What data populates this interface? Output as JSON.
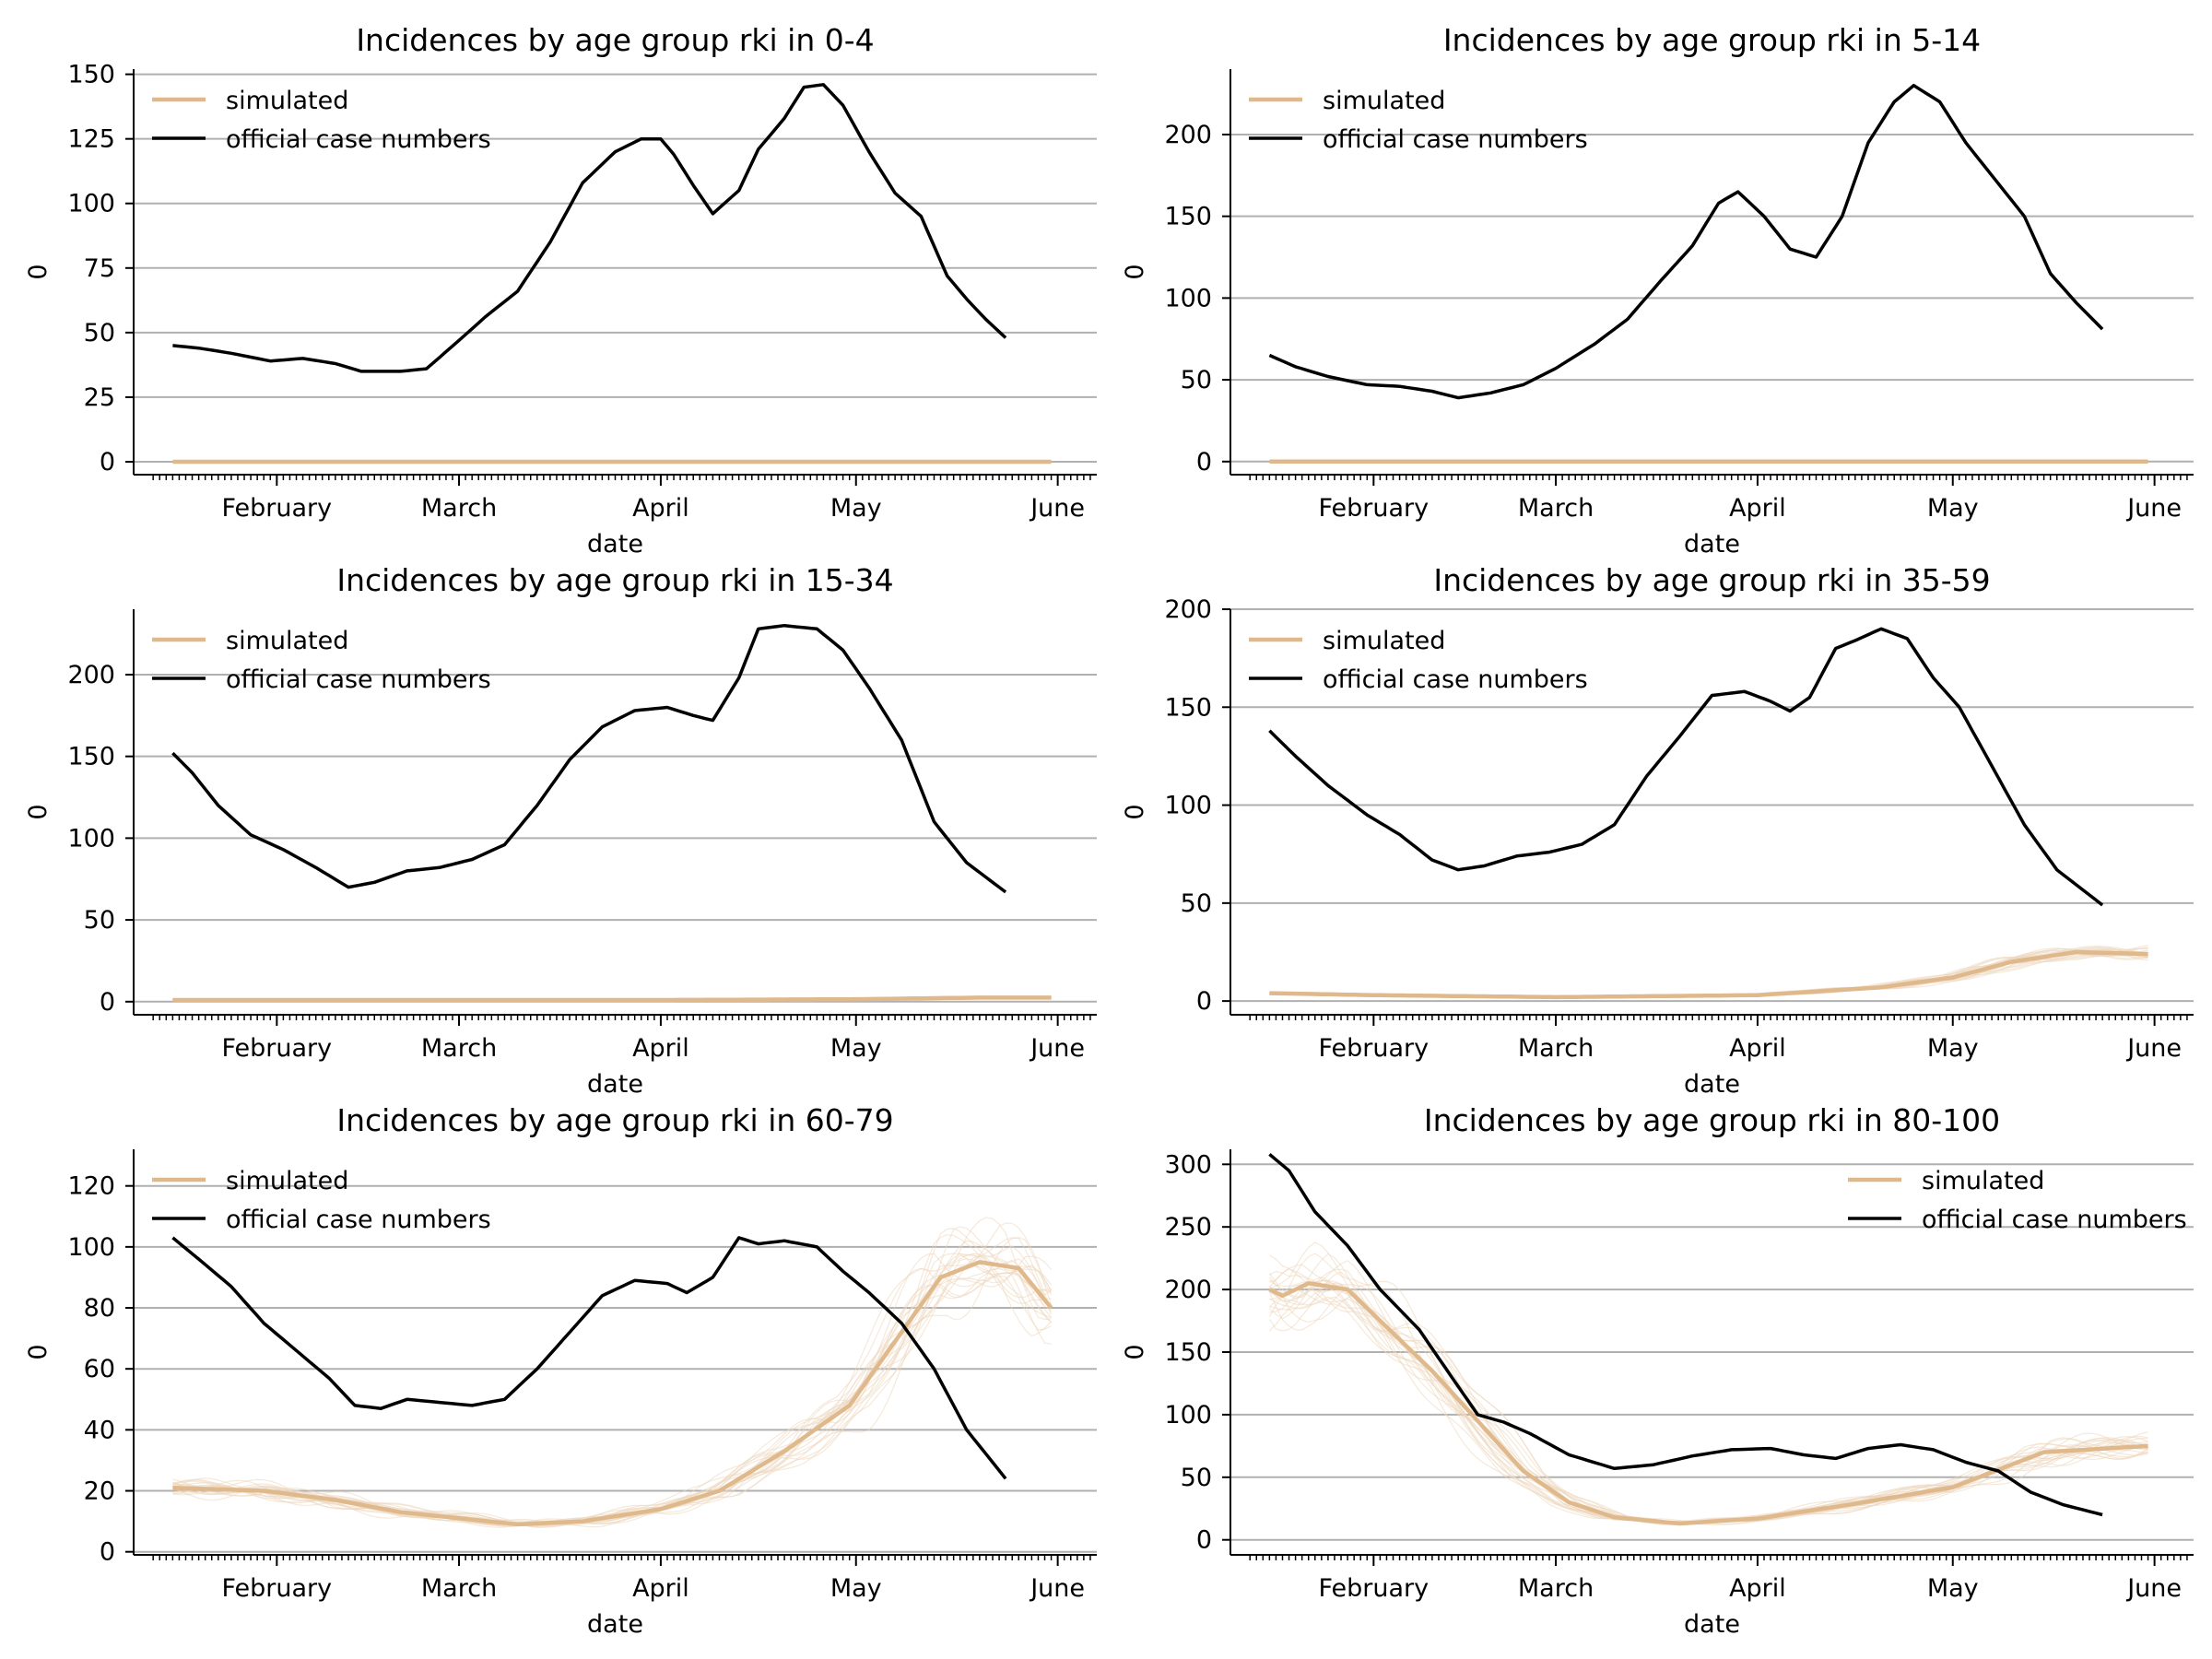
{
  "colors": {
    "simulated": "#dfb98c",
    "simulated_runs": "#ecd7bd",
    "official": "#000000",
    "grid": "#b0b0b0",
    "axis": "#000000"
  },
  "chart_data": [
    {
      "type": "line",
      "title": "Incidences by age group rki in 0-4",
      "xlabel": "date",
      "ylabel": "0",
      "xlim": [
        "2021-01-10",
        "2021-06-07"
      ],
      "ylim": [
        -5,
        152
      ],
      "yticks": [
        0,
        25,
        50,
        75,
        100,
        125,
        150
      ],
      "xticks": [
        {
          "date": "2021-02-01",
          "label": "February"
        },
        {
          "date": "2021-03-01",
          "label": "March"
        },
        {
          "date": "2021-04-01",
          "label": "April"
        },
        {
          "date": "2021-05-01",
          "label": "May"
        },
        {
          "date": "2021-06-01",
          "label": "June"
        }
      ],
      "grid": "horizontal",
      "legend_position": "upper-left",
      "series": [
        {
          "name": "official case numbers",
          "x": [
            "2021-01-16",
            "2021-01-20",
            "2021-01-25",
            "2021-01-31",
            "2021-02-05",
            "2021-02-10",
            "2021-02-14",
            "2021-02-20",
            "2021-02-24",
            "2021-03-01",
            "2021-03-05",
            "2021-03-10",
            "2021-03-15",
            "2021-03-20",
            "2021-03-25",
            "2021-03-29",
            "2021-04-01",
            "2021-04-03",
            "2021-04-06",
            "2021-04-09",
            "2021-04-13",
            "2021-04-16",
            "2021-04-20",
            "2021-04-23",
            "2021-04-26",
            "2021-04-29",
            "2021-05-03",
            "2021-05-07",
            "2021-05-11",
            "2021-05-15",
            "2021-05-18",
            "2021-05-21",
            "2021-05-24"
          ],
          "values": [
            45,
            44,
            42,
            39,
            40,
            38,
            35,
            35,
            36,
            47,
            56,
            66,
            85,
            108,
            120,
            125,
            125,
            119,
            107,
            96,
            105,
            121,
            133,
            145,
            146,
            138,
            120,
            104,
            95,
            72,
            63,
            55,
            48
          ]
        },
        {
          "name": "simulated",
          "x": [
            "2021-01-16",
            "2021-05-31"
          ],
          "values": [
            0,
            0
          ]
        }
      ]
    },
    {
      "type": "line",
      "title": "Incidences by age group rki in 5-14",
      "xlabel": "date",
      "ylabel": "0",
      "xlim": [
        "2021-01-10",
        "2021-06-07"
      ],
      "ylim": [
        -8,
        240
      ],
      "yticks": [
        0,
        50,
        100,
        150,
        200
      ],
      "xticks": [
        {
          "date": "2021-02-01",
          "label": "February"
        },
        {
          "date": "2021-03-01",
          "label": "March"
        },
        {
          "date": "2021-04-01",
          "label": "April"
        },
        {
          "date": "2021-05-01",
          "label": "May"
        },
        {
          "date": "2021-06-01",
          "label": "June"
        }
      ],
      "grid": "horizontal",
      "legend_position": "upper-left",
      "series": [
        {
          "name": "official case numbers",
          "x": [
            "2021-01-16",
            "2021-01-20",
            "2021-01-25",
            "2021-01-31",
            "2021-02-05",
            "2021-02-10",
            "2021-02-14",
            "2021-02-19",
            "2021-02-24",
            "2021-03-01",
            "2021-03-07",
            "2021-03-12",
            "2021-03-17",
            "2021-03-22",
            "2021-03-26",
            "2021-03-29",
            "2021-04-02",
            "2021-04-06",
            "2021-04-10",
            "2021-04-14",
            "2021-04-18",
            "2021-04-22",
            "2021-04-25",
            "2021-04-29",
            "2021-05-03",
            "2021-05-08",
            "2021-05-12",
            "2021-05-16",
            "2021-05-20",
            "2021-05-24"
          ],
          "values": [
            65,
            58,
            52,
            47,
            46,
            43,
            39,
            42,
            47,
            57,
            72,
            87,
            110,
            132,
            158,
            165,
            150,
            130,
            125,
            150,
            195,
            220,
            230,
            220,
            195,
            170,
            150,
            115,
            97,
            81
          ]
        },
        {
          "name": "simulated",
          "x": [
            "2021-01-16",
            "2021-05-31"
          ],
          "values": [
            0,
            0
          ]
        }
      ]
    },
    {
      "type": "line",
      "title": "Incidences by age group rki in 15-34",
      "xlabel": "date",
      "ylabel": "0",
      "xlim": [
        "2021-01-10",
        "2021-06-07"
      ],
      "ylim": [
        -8,
        240
      ],
      "yticks": [
        0,
        50,
        100,
        150,
        200
      ],
      "xticks": [
        {
          "date": "2021-02-01",
          "label": "February"
        },
        {
          "date": "2021-03-01",
          "label": "March"
        },
        {
          "date": "2021-04-01",
          "label": "April"
        },
        {
          "date": "2021-05-01",
          "label": "May"
        },
        {
          "date": "2021-06-01",
          "label": "June"
        }
      ],
      "grid": "horizontal",
      "legend_position": "upper-left",
      "series": [
        {
          "name": "official case numbers",
          "x": [
            "2021-01-16",
            "2021-01-19",
            "2021-01-23",
            "2021-01-28",
            "2021-02-02",
            "2021-02-07",
            "2021-02-12",
            "2021-02-16",
            "2021-02-21",
            "2021-02-26",
            "2021-03-03",
            "2021-03-08",
            "2021-03-13",
            "2021-03-18",
            "2021-03-23",
            "2021-03-28",
            "2021-04-02",
            "2021-04-06",
            "2021-04-09",
            "2021-04-13",
            "2021-04-16",
            "2021-04-20",
            "2021-04-25",
            "2021-04-29",
            "2021-05-03",
            "2021-05-08",
            "2021-05-13",
            "2021-05-18",
            "2021-05-24"
          ],
          "values": [
            152,
            140,
            120,
            102,
            93,
            82,
            70,
            73,
            80,
            82,
            87,
            96,
            120,
            148,
            168,
            178,
            180,
            175,
            172,
            198,
            228,
            230,
            228,
            215,
            192,
            160,
            110,
            85,
            67
          ]
        },
        {
          "name": "simulated",
          "x": [
            "2021-01-16",
            "2021-03-01",
            "2021-04-01",
            "2021-05-01",
            "2021-05-20",
            "2021-05-31"
          ],
          "values": [
            1,
            1,
            1,
            1.5,
            2.5,
            2.5
          ]
        }
      ]
    },
    {
      "type": "line",
      "title": "Incidences by age group rki in 35-59",
      "xlabel": "date",
      "ylabel": "0",
      "xlim": [
        "2021-01-10",
        "2021-06-07"
      ],
      "ylim": [
        -7,
        200
      ],
      "yticks": [
        0,
        50,
        100,
        150,
        200
      ],
      "xticks": [
        {
          "date": "2021-02-01",
          "label": "February"
        },
        {
          "date": "2021-03-01",
          "label": "March"
        },
        {
          "date": "2021-04-01",
          "label": "April"
        },
        {
          "date": "2021-05-01",
          "label": "May"
        },
        {
          "date": "2021-06-01",
          "label": "June"
        }
      ],
      "grid": "horizontal",
      "legend_position": "upper-left",
      "series": [
        {
          "name": "official case numbers",
          "x": [
            "2021-01-16",
            "2021-01-20",
            "2021-01-25",
            "2021-01-31",
            "2021-02-05",
            "2021-02-10",
            "2021-02-14",
            "2021-02-18",
            "2021-02-23",
            "2021-02-28",
            "2021-03-05",
            "2021-03-10",
            "2021-03-15",
            "2021-03-20",
            "2021-03-25",
            "2021-03-30",
            "2021-04-03",
            "2021-04-06",
            "2021-04-09",
            "2021-04-13",
            "2021-04-16",
            "2021-04-20",
            "2021-04-24",
            "2021-04-28",
            "2021-05-02",
            "2021-05-07",
            "2021-05-12",
            "2021-05-17",
            "2021-05-24"
          ],
          "values": [
            138,
            125,
            110,
            95,
            85,
            72,
            67,
            69,
            74,
            76,
            80,
            90,
            115,
            135,
            156,
            158,
            153,
            148,
            155,
            180,
            184,
            190,
            185,
            165,
            150,
            120,
            90,
            67,
            49
          ]
        },
        {
          "name": "simulated",
          "x": [
            "2021-01-16",
            "2021-02-01",
            "2021-03-01",
            "2021-04-01",
            "2021-04-20",
            "2021-05-01",
            "2021-05-10",
            "2021-05-20",
            "2021-05-31"
          ],
          "values": [
            4,
            3,
            2,
            3,
            7,
            12,
            20,
            25,
            24
          ]
        }
      ]
    },
    {
      "type": "line",
      "title": "Incidences by age group rki in 60-79",
      "xlabel": "date",
      "ylabel": "0",
      "xlim": [
        "2021-01-10",
        "2021-06-07"
      ],
      "ylim": [
        -1,
        132
      ],
      "yticks": [
        0,
        20,
        40,
        60,
        80,
        100,
        120
      ],
      "xticks": [
        {
          "date": "2021-02-01",
          "label": "February"
        },
        {
          "date": "2021-03-01",
          "label": "March"
        },
        {
          "date": "2021-04-01",
          "label": "April"
        },
        {
          "date": "2021-05-01",
          "label": "May"
        },
        {
          "date": "2021-06-01",
          "label": "June"
        }
      ],
      "grid": "horizontal",
      "legend_position": "upper-left",
      "series": [
        {
          "name": "official case numbers",
          "x": [
            "2021-01-16",
            "2021-01-20",
            "2021-01-25",
            "2021-01-30",
            "2021-02-04",
            "2021-02-09",
            "2021-02-13",
            "2021-02-17",
            "2021-02-21",
            "2021-02-26",
            "2021-03-03",
            "2021-03-08",
            "2021-03-13",
            "2021-03-18",
            "2021-03-23",
            "2021-03-28",
            "2021-04-02",
            "2021-04-05",
            "2021-04-09",
            "2021-04-13",
            "2021-04-16",
            "2021-04-20",
            "2021-04-25",
            "2021-04-29",
            "2021-05-03",
            "2021-05-08",
            "2021-05-13",
            "2021-05-18",
            "2021-05-24"
          ],
          "values": [
            103,
            96,
            87,
            75,
            66,
            57,
            48,
            47,
            50,
            49,
            48,
            50,
            60,
            72,
            84,
            89,
            88,
            85,
            90,
            103,
            101,
            102,
            100,
            92,
            85,
            75,
            60,
            40,
            24
          ]
        },
        {
          "name": "simulated",
          "x": [
            "2021-01-16",
            "2021-01-30",
            "2021-02-10",
            "2021-02-20",
            "2021-03-01",
            "2021-03-10",
            "2021-03-20",
            "2021-04-01",
            "2021-04-10",
            "2021-04-20",
            "2021-04-30",
            "2021-05-08",
            "2021-05-14",
            "2021-05-20",
            "2021-05-26",
            "2021-05-31"
          ],
          "values": [
            21,
            20,
            17,
            13,
            11,
            9,
            10,
            14,
            20,
            33,
            48,
            72,
            90,
            95,
            93,
            80
          ]
        }
      ]
    },
    {
      "type": "line",
      "title": "Incidences by age group rki in 80-100",
      "xlabel": "date",
      "ylabel": "0",
      "xlim": [
        "2021-01-10",
        "2021-06-07"
      ],
      "ylim": [
        -12,
        312
      ],
      "yticks": [
        0,
        50,
        100,
        150,
        200,
        250,
        300
      ],
      "xticks": [
        {
          "date": "2021-02-01",
          "label": "February"
        },
        {
          "date": "2021-03-01",
          "label": "March"
        },
        {
          "date": "2021-04-01",
          "label": "April"
        },
        {
          "date": "2021-05-01",
          "label": "May"
        },
        {
          "date": "2021-06-01",
          "label": "June"
        }
      ],
      "grid": "horizontal",
      "legend_position": "upper-right",
      "series": [
        {
          "name": "official case numbers",
          "x": [
            "2021-01-16",
            "2021-01-19",
            "2021-01-23",
            "2021-01-28",
            "2021-02-02",
            "2021-02-08",
            "2021-02-13",
            "2021-02-17",
            "2021-02-21",
            "2021-02-25",
            "2021-03-03",
            "2021-03-10",
            "2021-03-16",
            "2021-03-22",
            "2021-03-28",
            "2021-04-03",
            "2021-04-08",
            "2021-04-13",
            "2021-04-18",
            "2021-04-23",
            "2021-04-28",
            "2021-05-03",
            "2021-05-08",
            "2021-05-13",
            "2021-05-18",
            "2021-05-24"
          ],
          "values": [
            308,
            295,
            262,
            235,
            200,
            168,
            130,
            100,
            94,
            85,
            68,
            57,
            60,
            67,
            72,
            73,
            68,
            65,
            73,
            76,
            72,
            62,
            55,
            38,
            28,
            20
          ]
        },
        {
          "name": "simulated",
          "x": [
            "2021-01-16",
            "2021-01-18",
            "2021-01-22",
            "2021-01-28",
            "2021-02-03",
            "2021-02-10",
            "2021-02-17",
            "2021-02-24",
            "2021-03-03",
            "2021-03-10",
            "2021-03-20",
            "2021-04-01",
            "2021-04-15",
            "2021-05-01",
            "2021-05-15",
            "2021-05-31"
          ],
          "values": [
            200,
            195,
            205,
            200,
            170,
            135,
            95,
            55,
            30,
            18,
            13,
            17,
            28,
            42,
            70,
            75
          ]
        }
      ]
    }
  ]
}
